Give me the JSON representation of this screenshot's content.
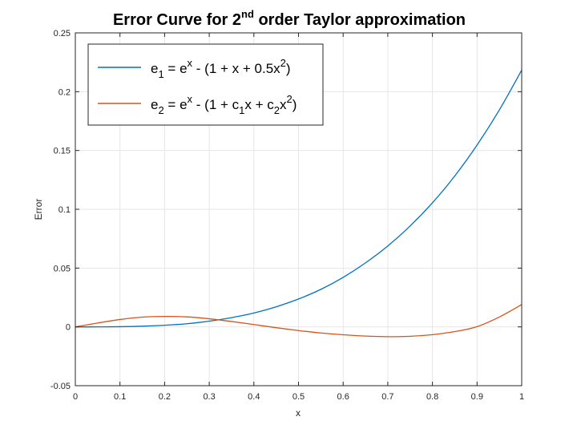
{
  "chart_data": {
    "type": "line",
    "title": {
      "main": "Error Curve for 2",
      "sup": "nd",
      "rest": " order Taylor approximation"
    },
    "xlabel": "x",
    "ylabel": "Error",
    "xlim": [
      0,
      1
    ],
    "ylim": [
      -0.05,
      0.25
    ],
    "xticks": [
      "0",
      "0.1",
      "0.2",
      "0.3",
      "0.4",
      "0.5",
      "0.6",
      "0.7",
      "0.8",
      "0.9",
      "1"
    ],
    "yticks": [
      "-0.05",
      "0",
      "0.05",
      "0.1",
      "0.15",
      "0.2",
      "0.25"
    ],
    "grid": true,
    "legend_position": "top-left",
    "x": [
      0,
      0.05,
      0.1,
      0.15,
      0.2,
      0.25,
      0.3,
      0.35,
      0.4,
      0.45,
      0.5,
      0.55,
      0.6,
      0.65,
      0.7,
      0.75,
      0.8,
      0.85,
      0.9,
      0.95,
      1.0
    ],
    "series": [
      {
        "legend": {
          "base": "e",
          "sub": "1",
          "mid1": " = e",
          "sup1": "x",
          "mid2": " - (1 + x + 0.5x",
          "sup2": "2",
          "end": ")"
        },
        "color": "#0072bd",
        "values": [
          0,
          2e-05,
          0.00017,
          0.00058,
          0.0014,
          0.0027,
          0.0049,
          0.0079,
          0.0118,
          0.0171,
          0.0237,
          0.0319,
          0.0421,
          0.0544,
          0.0688,
          0.0858,
          0.1055,
          0.1283,
          0.1546,
          0.1845,
          0.2183
        ]
      },
      {
        "legend": {
          "base": "e",
          "sub": "2",
          "mid1": " = e",
          "sup1": "x",
          "mid2": " - (1 + c",
          "sub2": "1",
          "mid3": "x + c",
          "sub3": "2",
          "mid4": "x",
          "sup2": "2",
          "end": ")"
        },
        "color": "#d95319",
        "values": [
          0,
          0.0033,
          0.0063,
          0.0083,
          0.0089,
          0.0085,
          0.0069,
          0.0046,
          0.002,
          -0.0007,
          -0.0031,
          -0.0052,
          -0.0067,
          -0.0078,
          -0.0083,
          -0.008,
          -0.0066,
          -0.004,
          0.0002,
          0.0084,
          0.019
        ]
      }
    ]
  }
}
